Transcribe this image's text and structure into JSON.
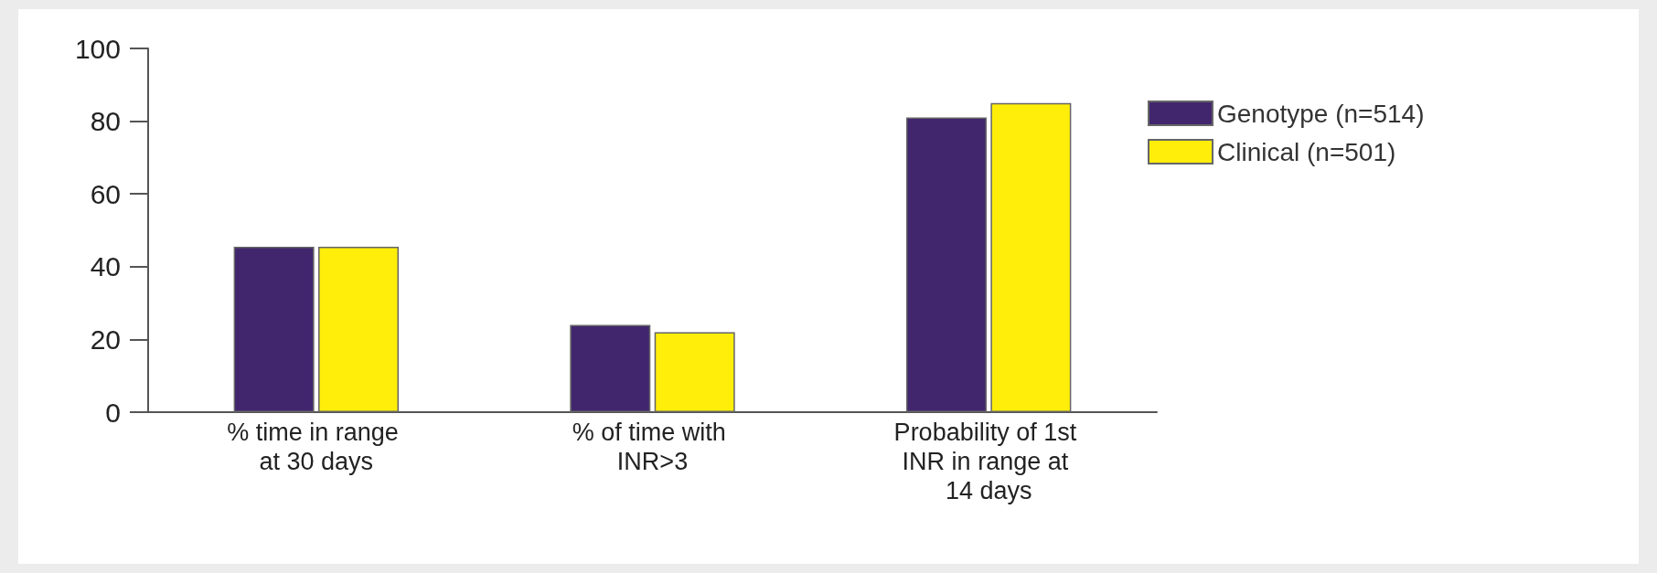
{
  "chart_data": {
    "type": "bar",
    "categories": [
      "% time in range at 30 days",
      "% of time with INR>3",
      "Probability of 1st INR in range at 14 days"
    ],
    "series": [
      {
        "name": "Genotype (n=514)",
        "color": "#41266e",
        "values": [
          45.5,
          24,
          81
        ]
      },
      {
        "name": "Clinical (n=501)",
        "color": "#ffee0a",
        "values": [
          45.5,
          22,
          85
        ]
      }
    ],
    "ylim": [
      0,
      100
    ],
    "yticks": [
      0,
      20,
      40,
      60,
      80,
      100
    ],
    "grid": false,
    "legend": "top right"
  }
}
